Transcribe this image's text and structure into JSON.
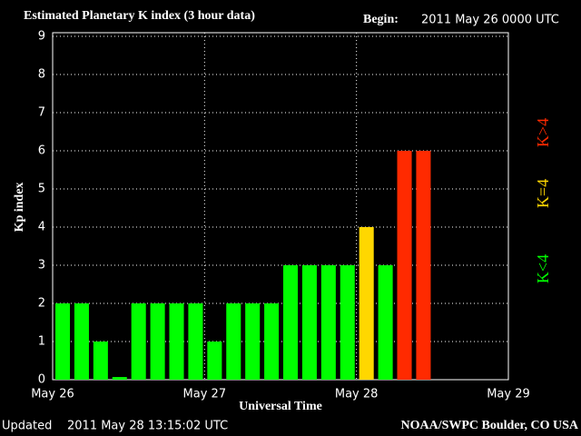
{
  "chart_data": {
    "type": "bar",
    "title": "Estimated Planetary K index (3 hour data)",
    "begin_label": "Begin:",
    "begin_value": "2011 May 26 0000 UTC",
    "ylabel": "Kp index",
    "xlabel": "Universal Time",
    "updated_label": "Updated",
    "updated_value": "2011 May 28 13:15:02 UTC",
    "source": "NOAA/SWPC Boulder, CO USA",
    "x": [
      0,
      3,
      6,
      9,
      12,
      15,
      18,
      21,
      24,
      27,
      30,
      33,
      36,
      39,
      42,
      45,
      48,
      51,
      54,
      57
    ],
    "values": [
      2,
      2,
      1,
      0.07,
      2,
      2,
      2,
      2,
      1,
      2,
      2,
      2,
      3,
      3,
      3,
      3,
      4,
      3,
      6,
      6
    ],
    "colors": [
      "#00ff00",
      "#00ff00",
      "#00ff00",
      "#00ff00",
      "#00ff00",
      "#00ff00",
      "#00ff00",
      "#00ff00",
      "#00ff00",
      "#00ff00",
      "#00ff00",
      "#00ff00",
      "#00ff00",
      "#00ff00",
      "#00ff00",
      "#00ff00",
      "#ffd700",
      "#00ff00",
      "#ff2a00",
      "#ff2a00"
    ],
    "bar_width_hours": 2.3,
    "xlim": [
      0,
      72
    ],
    "xticks": [
      {
        "value": 0,
        "label": "May 26"
      },
      {
        "value": 24,
        "label": "May 27"
      },
      {
        "value": 48,
        "label": "May 28"
      },
      {
        "value": 72,
        "label": "May 29"
      }
    ],
    "ylim": [
      0,
      9
    ],
    "yticks": [
      0,
      1,
      2,
      3,
      4,
      5,
      6,
      7,
      8,
      9
    ],
    "grid": true,
    "legend": [
      {
        "label": "K<4",
        "color": "#00ff00"
      },
      {
        "label": "K=4",
        "color": "#ffd700"
      },
      {
        "label": "K>4",
        "color": "#ff2a00"
      }
    ]
  }
}
